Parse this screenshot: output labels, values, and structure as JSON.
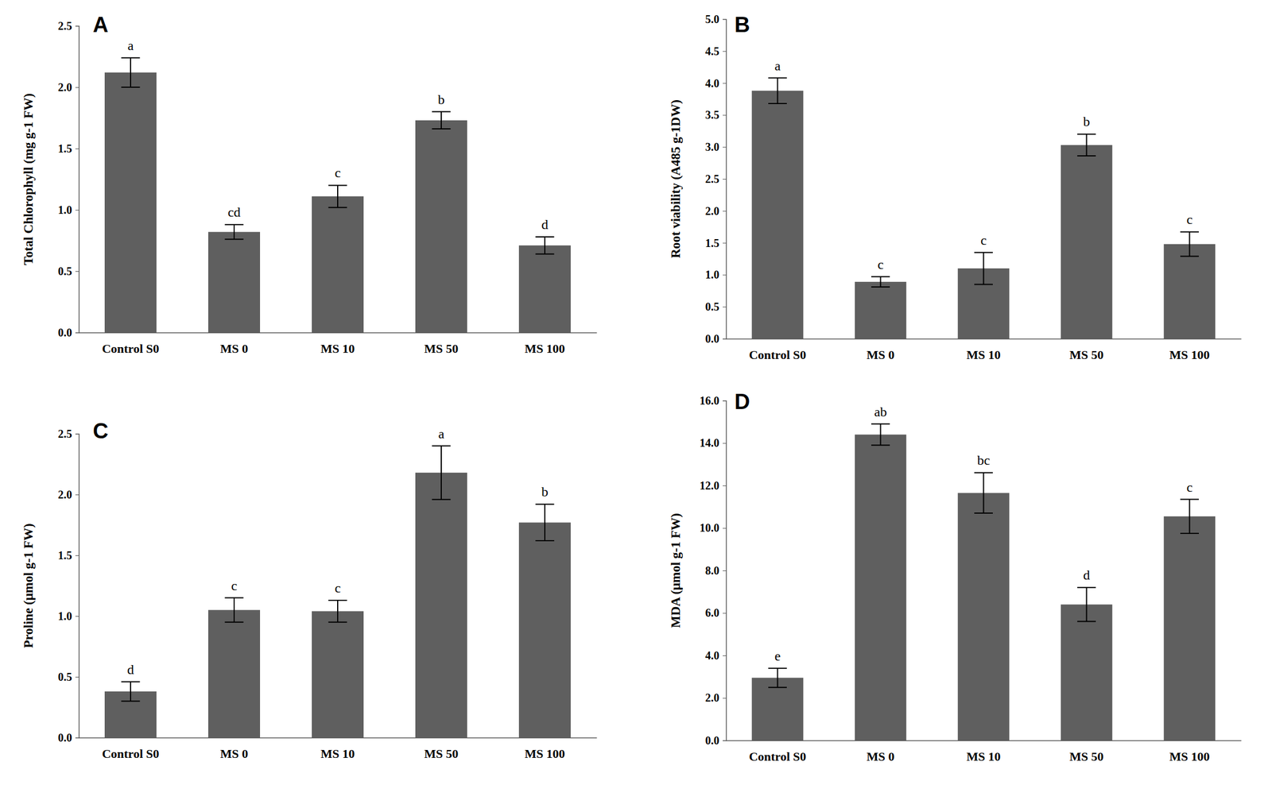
{
  "chart_data": [
    {
      "type": "bar",
      "title": "A",
      "y_label": "Total Chlorophyll (mg g-1 FW)",
      "categories": [
        "Control S0",
        "MS 0",
        "MS 10",
        "MS 50",
        "MS 100"
      ],
      "values": [
        2.12,
        0.82,
        1.11,
        1.73,
        0.71
      ],
      "errors": [
        0.12,
        0.06,
        0.09,
        0.07,
        0.07
      ],
      "annotations": [
        "a",
        "cd",
        "c",
        "b",
        "d"
      ],
      "color": "#5f5f5f",
      "ylim": [
        0,
        2.5
      ],
      "yticks": [
        {
          "value": 0,
          "label": "0.0"
        },
        0.5,
        {
          "value": 1,
          "label": "1.0"
        },
        1.5,
        {
          "value": 2,
          "label": "2.0"
        },
        2.5
      ],
      "grid": false
    },
    {
      "type": "bar",
      "title": "B",
      "y_label": "Root viability (A485 g-1DW)",
      "categories": [
        "Control S0",
        "MS 0",
        "MS 10",
        "MS 50",
        "MS 100"
      ],
      "values": [
        3.88,
        0.89,
        1.1,
        3.03,
        1.48
      ],
      "errors": [
        0.2,
        0.08,
        0.25,
        0.17,
        0.19
      ],
      "annotations": [
        "a",
        "c",
        "c",
        "b",
        "c"
      ],
      "color": "#5f5f5f",
      "ylim": [
        0,
        5
      ],
      "yticks": [
        {
          "value": 0,
          "label": "0.0"
        },
        0.5,
        {
          "value": 1,
          "label": "1.0"
        },
        1.5,
        {
          "value": 2,
          "label": "2.0"
        },
        2.5,
        {
          "value": 3,
          "label": "3.0"
        },
        3.5,
        {
          "value": 4,
          "label": "4.0"
        },
        4.5,
        {
          "value": 5,
          "label": "5.0"
        }
      ],
      "grid": false
    },
    {
      "type": "bar",
      "title": "C",
      "y_label": "Proline (μmol g-1 FW)",
      "categories": [
        "Control S0",
        "MS 0",
        "MS 10",
        "MS 50",
        "MS 100"
      ],
      "values": [
        0.38,
        1.05,
        1.04,
        2.18,
        1.77
      ],
      "errors": [
        0.08,
        0.1,
        0.09,
        0.22,
        0.15
      ],
      "annotations": [
        "d",
        "c",
        "c",
        "a",
        "b"
      ],
      "color": "#5f5f5f",
      "ylim": [
        0,
        2.5
      ],
      "yticks": [
        {
          "value": 0,
          "label": "0.0"
        },
        0.5,
        {
          "value": 1,
          "label": "1.0"
        },
        1.5,
        {
          "value": 2,
          "label": "2.0"
        },
        2.5
      ],
      "grid": false
    },
    {
      "type": "bar",
      "title": "D",
      "y_label": "MDA (μmol g-1 FW)",
      "categories": [
        "Control S0",
        "MS 0",
        "MS 10",
        "MS 50",
        "MS 100"
      ],
      "values": [
        2.95,
        14.4,
        11.65,
        6.4,
        10.55
      ],
      "errors": [
        0.45,
        0.5,
        0.95,
        0.8,
        0.8
      ],
      "annotations": [
        "e",
        "ab",
        "bc",
        "d",
        "c"
      ],
      "color": "#5f5f5f",
      "ylim": [
        0,
        16
      ],
      "yticks": [
        {
          "value": 0,
          "label": "0.0"
        },
        {
          "value": 2,
          "label": "2.0"
        },
        {
          "value": 4,
          "label": "4.0"
        },
        {
          "value": 6,
          "label": "6.0"
        },
        {
          "value": 8,
          "label": "8.0"
        },
        {
          "value": 10,
          "label": "10.0"
        },
        {
          "value": 12,
          "label": "12.0"
        },
        {
          "value": 14,
          "label": "14.0"
        },
        {
          "value": 16,
          "label": "16.0"
        }
      ],
      "grid": false
    }
  ]
}
